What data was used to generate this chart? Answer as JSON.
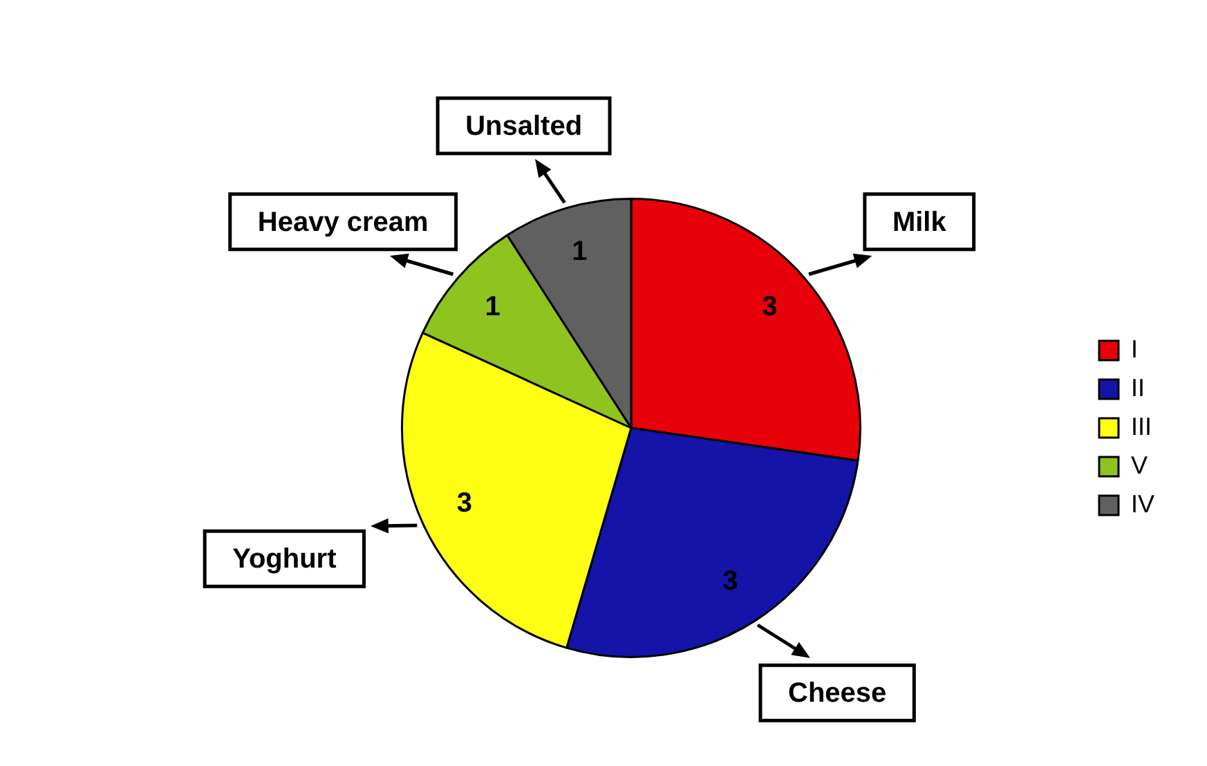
{
  "chart_data": {
    "type": "pie",
    "categories": [
      "I",
      "II",
      "III",
      "V",
      "IV"
    ],
    "values": [
      3,
      3,
      3,
      1,
      1
    ],
    "colors": [
      "#e8000b",
      "#1414a8",
      "#ffff14",
      "#8fc31f",
      "#606060"
    ],
    "data_labels": true,
    "legend": "right",
    "annotations": [
      "Milk",
      "Cheese",
      "Yoghurt",
      "Heavy cream",
      "Unsalted"
    ]
  }
}
